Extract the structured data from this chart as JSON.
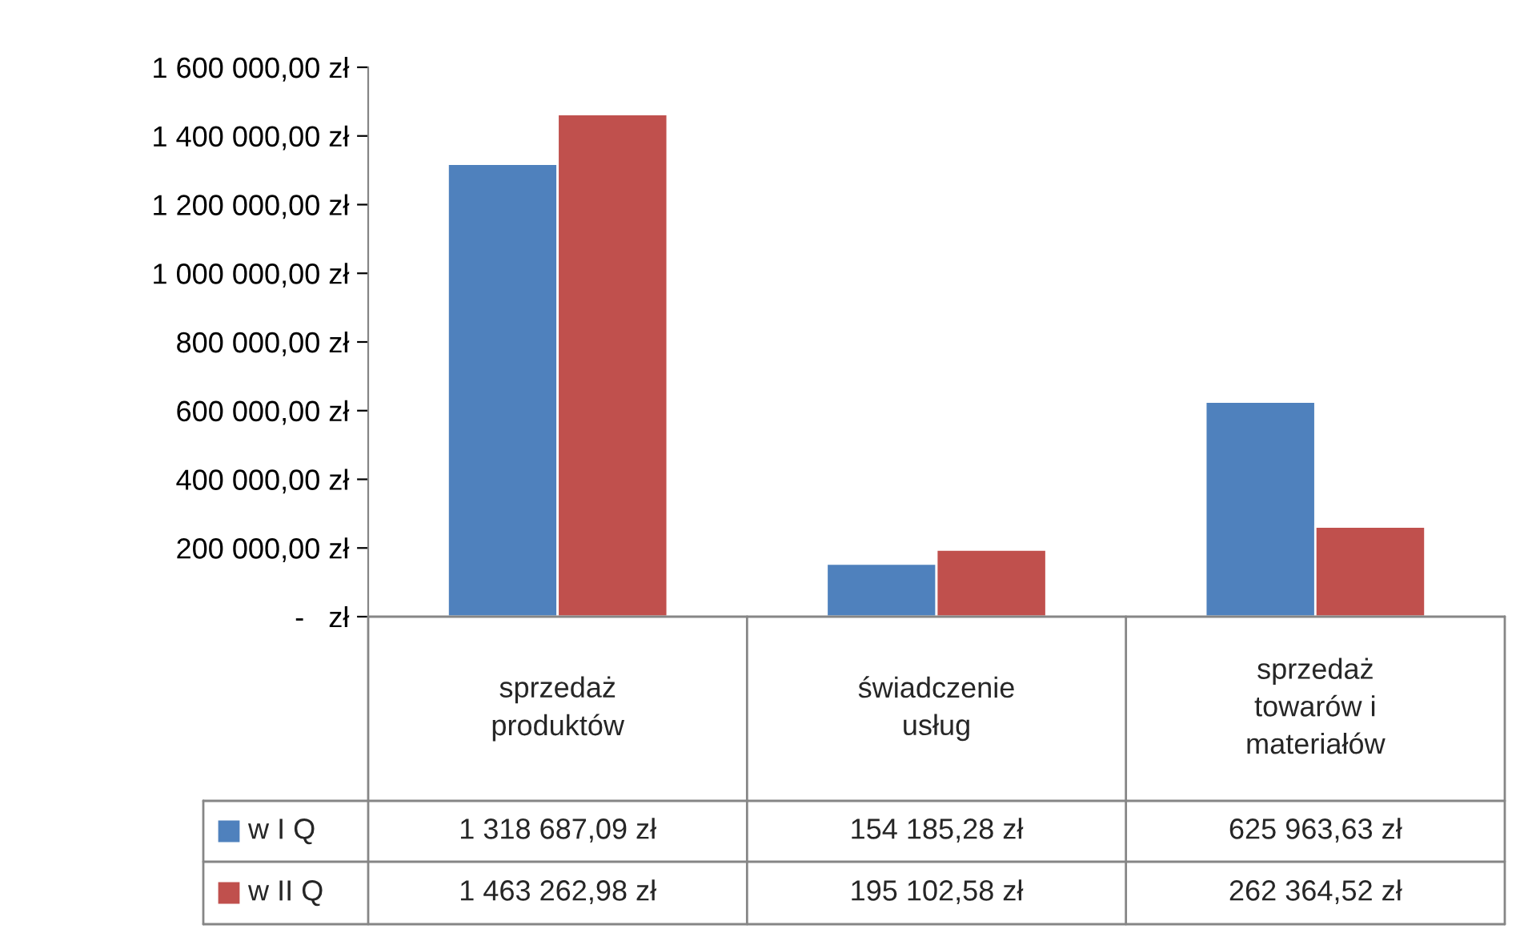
{
  "chart_data": {
    "type": "bar",
    "categories": [
      "sprzedaż produktów",
      "świadczenie usług",
      "sprzedaż towarów i materiałów"
    ],
    "series": [
      {
        "name": "w I Q",
        "color": "#4f81bd",
        "values": [
          1318687.09,
          154185.28,
          625963.63
        ],
        "value_labels": [
          "1 318 687,09 zł",
          "154 185,28 zł",
          "625 963,63 zł"
        ]
      },
      {
        "name": "w II Q",
        "color": "#c0504d",
        "values": [
          1463262.98,
          195102.58,
          262364.52
        ],
        "value_labels": [
          "1 463 262,98 zł",
          "195 102,58 zł",
          "262 364,52 zł"
        ]
      }
    ],
    "ylim": [
      0,
      1600000
    ],
    "yticks": [
      {
        "value": 0,
        "label": "-   zł"
      },
      {
        "value": 200000,
        "label": "200 000,00 zł"
      },
      {
        "value": 400000,
        "label": "400 000,00 zł"
      },
      {
        "value": 600000,
        "label": "600 000,00 zł"
      },
      {
        "value": 800000,
        "label": "800 000,00 zł"
      },
      {
        "value": 1000000,
        "label": "1 000 000,00 zł"
      },
      {
        "value": 1200000,
        "label": "1 200 000,00 zł"
      },
      {
        "value": 1400000,
        "label": "1 400 000,00 zł"
      },
      {
        "value": 1600000,
        "label": "1 600 000,00 zł"
      }
    ],
    "grid": false,
    "legend": "bottom"
  }
}
